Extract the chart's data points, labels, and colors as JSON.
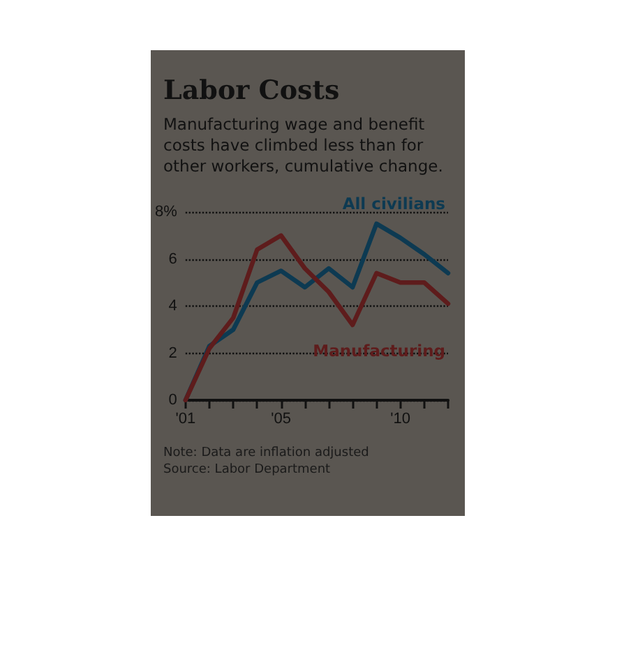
{
  "chart_data": {
    "type": "line",
    "title": "Labor Costs",
    "subtitle": "Manufacturing wage and benefit costs have climbed less than for other workers, cumulative change.",
    "x": [
      2001,
      2002,
      2003,
      2004,
      2005,
      2006,
      2007,
      2008,
      2009,
      2010,
      2011,
      2012
    ],
    "series": [
      {
        "name": "All civilians",
        "color": "#0d3a52",
        "values": [
          0,
          2.3,
          3.0,
          5.0,
          5.5,
          4.8,
          5.6,
          4.8,
          7.5,
          6.9,
          6.2,
          5.4
        ]
      },
      {
        "name": "Manufacturing",
        "color": "#5e1c1c",
        "values": [
          0,
          2.2,
          3.5,
          6.4,
          7.0,
          5.6,
          4.6,
          3.2,
          5.4,
          5.0,
          5.0,
          4.1
        ]
      }
    ],
    "xlim": [
      2001,
      2012
    ],
    "xticks": [
      {
        "value": 2001,
        "label": "'01"
      },
      {
        "value": 2002,
        "label": null
      },
      {
        "value": 2003,
        "label": null
      },
      {
        "value": 2004,
        "label": null
      },
      {
        "value": 2005,
        "label": "'05"
      },
      {
        "value": 2006,
        "label": null
      },
      {
        "value": 2007,
        "label": null
      },
      {
        "value": 2008,
        "label": null
      },
      {
        "value": 2009,
        "label": null
      },
      {
        "value": 2010,
        "label": "'10"
      },
      {
        "value": 2011,
        "label": null
      },
      {
        "value": 2012,
        "label": null
      }
    ],
    "ylim": [
      0,
      8
    ],
    "yticks": [
      0,
      2,
      4,
      6,
      {
        "value": 8,
        "label": "8%"
      }
    ],
    "grid": "y",
    "legend": false,
    "marker": "none",
    "line_style": "solid",
    "annotations": [
      "Note: Data are inflation adjusted",
      "Source: Labor Department"
    ]
  }
}
